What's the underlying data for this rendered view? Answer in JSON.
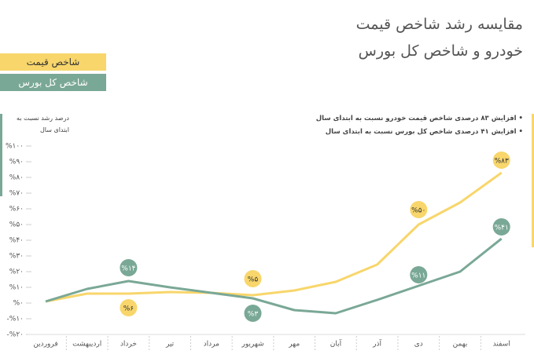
{
  "title": [
    "مقایسه رشد شاخص قیمت",
    "خودرو و شاخص کل بورس"
  ],
  "annotations": [
    "افزایش ۸۳ درصدی شاخص قیمت خودرو نسبت به ابتدای سال",
    "افزایش ۴۱ درصدی شاخص کل بورس نسبت به ابتدای سال"
  ],
  "chart_data": {
    "type": "line",
    "y_label": "درصد رشد نسبت به ابتدای سال",
    "categories": [
      "فروردین",
      "اردیبهشت",
      "خرداد",
      "تیر",
      "مرداد",
      "شهریور",
      "مهر",
      "آبان",
      "آذر",
      "دی",
      "بهمن",
      "اسفند"
    ],
    "series": [
      {
        "name": "شاخص قیمت",
        "color": "#f8d66b",
        "values": [
          1,
          6,
          6,
          7,
          6.5,
          5,
          8,
          13.5,
          24.5,
          50,
          64,
          83
        ],
        "value_labels": [
          null,
          null,
          "%۶",
          null,
          null,
          "%۵",
          null,
          null,
          null,
          "%۵۰",
          null,
          "%۸۳"
        ]
      },
      {
        "name": "شاخص کل بورس",
        "color": "#7aa896",
        "values": [
          1,
          9,
          14,
          10,
          6.5,
          3,
          -4.5,
          -6.5,
          2,
          11,
          20,
          41
        ],
        "value_labels": [
          null,
          null,
          "%۱۴",
          null,
          null,
          "%۳",
          null,
          null,
          null,
          "%۱۱",
          null,
          "%۴۱"
        ]
      }
    ],
    "ylim": [
      -20,
      100
    ],
    "yticks": [
      {
        "value": -20,
        "label": "-%۲۰"
      },
      {
        "value": -10,
        "label": "-%۱۰"
      },
      {
        "value": 0,
        "label": "%۰"
      },
      {
        "value": 10,
        "label": "%۱۰"
      },
      {
        "value": 20,
        "label": "%۲۰"
      },
      {
        "value": 30,
        "label": "%۳۰"
      },
      {
        "value": 40,
        "label": "%۴۰"
      },
      {
        "value": 50,
        "label": "%۵۰"
      },
      {
        "value": 60,
        "label": "%۶۰"
      },
      {
        "value": 70,
        "label": "%۷۰"
      },
      {
        "value": 80,
        "label": "%۸۰"
      },
      {
        "value": 90,
        "label": "%۹۰"
      },
      {
        "value": 100,
        "label": "%۱۰۰"
      }
    ],
    "grid": false
  }
}
